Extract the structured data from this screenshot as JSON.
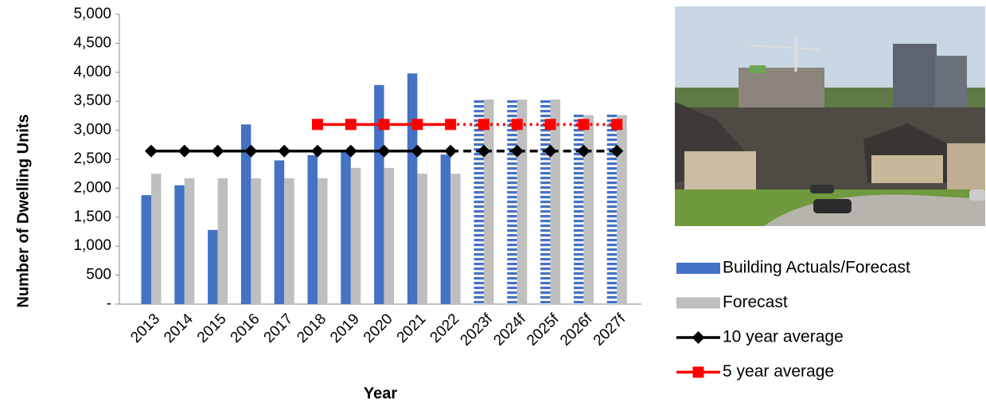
{
  "chart_data": {
    "type": "bar",
    "x_label": "Year",
    "y_label": "Number of Dwelling Units",
    "categories": [
      "2013",
      "2014",
      "2015",
      "2016",
      "2017",
      "2018",
      "2019",
      "2020",
      "2021",
      "2022",
      "2023f",
      "2024f",
      "2025f",
      "2026f",
      "2027f"
    ],
    "ylim": [
      0,
      5000
    ],
    "yticks": [
      {
        "value": 0,
        "label": "-"
      },
      500,
      {
        "value": 1000,
        "label": "1,000"
      },
      {
        "value": 1500,
        "label": "1,500"
      },
      {
        "value": 2000,
        "label": "2,000"
      },
      {
        "value": 2500,
        "label": "2,500"
      },
      {
        "value": 3000,
        "label": "3,000"
      },
      {
        "value": 3500,
        "label": "3,500"
      },
      {
        "value": 4000,
        "label": "4,000"
      },
      {
        "value": 4500,
        "label": "4,500"
      },
      {
        "value": 5000,
        "label": "5,000"
      }
    ],
    "series": [
      {
        "name": "Building Actuals/Forecast",
        "type": "bar",
        "color": "#4472c4",
        "values": [
          1880,
          2050,
          1280,
          3100,
          2480,
          2570,
          2620,
          3780,
          3980,
          2580,
          3520,
          3520,
          3520,
          3270,
          3270
        ]
      },
      {
        "name": "Forecast",
        "type": "bar",
        "color": "#bfbfbf",
        "values": [
          2250,
          2170,
          2170,
          2170,
          2170,
          2170,
          2350,
          2350,
          2250,
          2250,
          3530,
          3530,
          3530,
          3260,
          3260
        ]
      },
      {
        "name": "10 year average",
        "type": "line",
        "marker": "diamond",
        "color": "#000000",
        "values": [
          2640,
          2640,
          2640,
          2640,
          2640,
          2640,
          2640,
          2640,
          2640,
          2640,
          2640,
          2640,
          2640,
          2640,
          2640
        ]
      },
      {
        "name": "5 year average",
        "type": "line",
        "marker": "square",
        "color": "#ff0000",
        "values": [
          null,
          null,
          null,
          null,
          null,
          3100,
          3100,
          3100,
          3100,
          3100,
          3100,
          3100,
          3100,
          3100,
          3100
        ]
      }
    ]
  }
}
